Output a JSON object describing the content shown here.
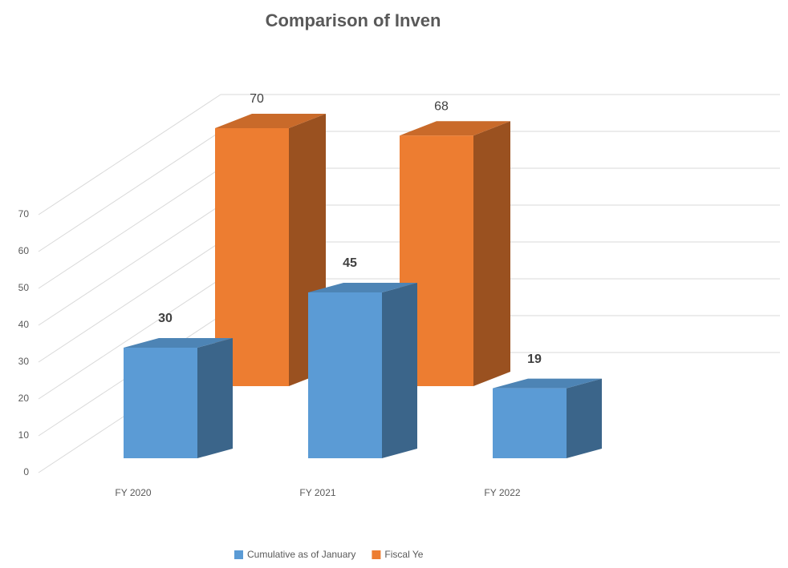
{
  "chart_data": {
    "type": "bar3d",
    "title": "Comparison of Inven",
    "categories": [
      "FY 2020",
      "FY 2021",
      "FY 2022"
    ],
    "series": [
      {
        "name": "Cumulative as of January",
        "color": "#5b9bd5",
        "values": [
          30,
          45,
          19
        ]
      },
      {
        "name": "Fiscal Ye",
        "color": "#ed7d31",
        "values": [
          70,
          68,
          null
        ]
      }
    ],
    "ylim": [
      0,
      70
    ],
    "yticks": [
      0,
      10,
      20,
      30,
      40,
      50,
      60,
      70
    ],
    "grid": true,
    "legend": "bottom"
  }
}
